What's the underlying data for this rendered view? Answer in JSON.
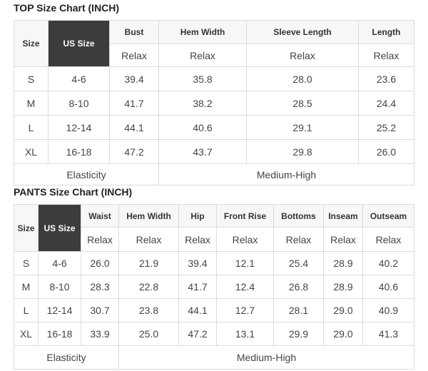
{
  "top": {
    "title": "TOP Size Chart (INCH)",
    "headers": [
      "Size",
      "US Size",
      "Bust",
      "Hem Width",
      "Sleeve Length",
      "Length"
    ],
    "sub_label": "Relax",
    "rows": [
      [
        "S",
        "4-6",
        "39.4",
        "35.8",
        "28.0",
        "23.6"
      ],
      [
        "M",
        "8-10",
        "41.7",
        "38.2",
        "28.5",
        "24.4"
      ],
      [
        "L",
        "12-14",
        "44.1",
        "40.6",
        "29.1",
        "25.2"
      ],
      [
        "XL",
        "16-18",
        "47.2",
        "43.7",
        "29.8",
        "26.0"
      ]
    ],
    "elasticity_label": "Elasticity",
    "elasticity_value": "Medium-High"
  },
  "pants": {
    "title": "PANTS Size Chart (INCH)",
    "headers": [
      "Size",
      "US Size",
      "Waist",
      "Hem Width",
      "Hip",
      "Front Rise",
      "Bottoms",
      "Inseam",
      "Outseam"
    ],
    "sub_label": "Relax",
    "rows": [
      [
        "S",
        "4-6",
        "26.0",
        "21.9",
        "39.4",
        "12.1",
        "25.4",
        "28.9",
        "40.2"
      ],
      [
        "M",
        "8-10",
        "28.3",
        "22.8",
        "41.7",
        "12.4",
        "26.8",
        "28.9",
        "40.6"
      ],
      [
        "L",
        "12-14",
        "30.7",
        "23.8",
        "44.1",
        "12.7",
        "28.1",
        "29.0",
        "40.9"
      ],
      [
        "XL",
        "16-18",
        "33.9",
        "25.0",
        "47.2",
        "13.1",
        "29.9",
        "29.0",
        "41.3"
      ]
    ],
    "elasticity_label": "Elasticity",
    "elasticity_value": "Medium-High"
  }
}
